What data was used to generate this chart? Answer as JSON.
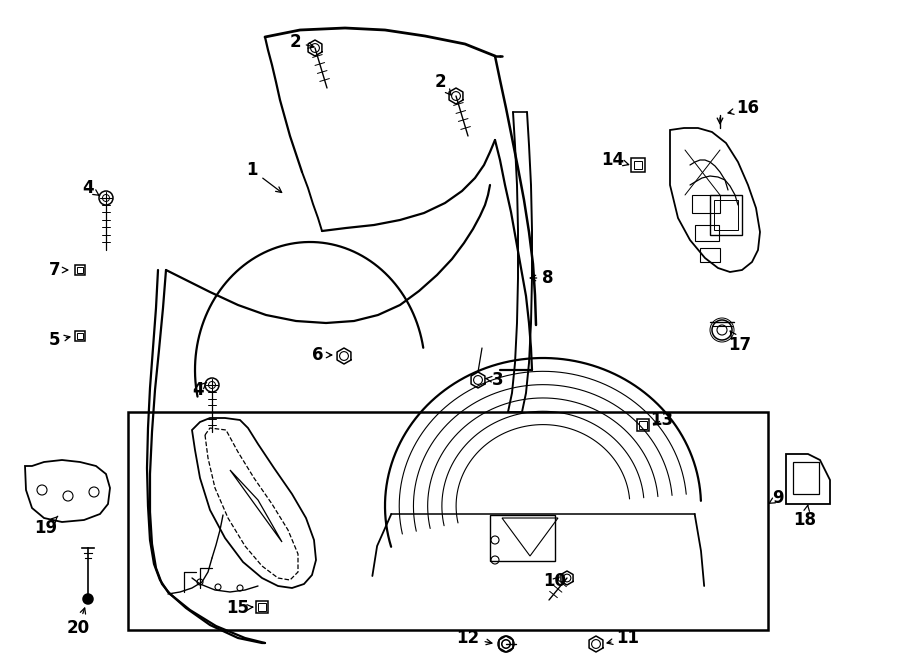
{
  "bg_color": "#ffffff",
  "fig_width": 9.0,
  "fig_height": 6.61,
  "dpi": 100
}
